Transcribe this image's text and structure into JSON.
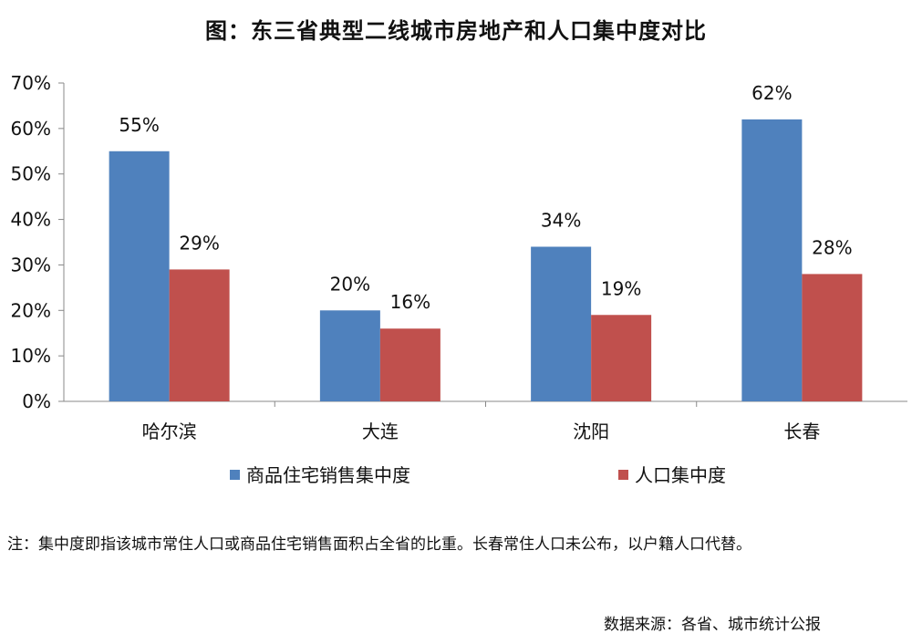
{
  "chart_data": {
    "type": "bar",
    "title": "图：东三省典型二线城市房地产和人口集中度对比",
    "categories": [
      "哈尔滨",
      "大连",
      "沈阳",
      "长春"
    ],
    "series": [
      {
        "name": "商品住宅销售集中度",
        "values": [
          55,
          20,
          34,
          62
        ],
        "labels": [
          "55%",
          "20%",
          "34%",
          "62%"
        ],
        "color": "#4f81bd"
      },
      {
        "name": "人口集中度",
        "values": [
          29,
          16,
          19,
          28
        ],
        "labels": [
          "29%",
          "16%",
          "19%",
          "28%"
        ],
        "color": "#c0504d"
      }
    ],
    "yticks": [
      "0%",
      "10%",
      "20%",
      "30%",
      "40%",
      "50%",
      "60%",
      "70%"
    ],
    "ylim": [
      0,
      70
    ],
    "legend": "bottom",
    "grid": false
  },
  "note": "注：集中度即指该城市常住人口或商品住宅销售面积占全省的比重。长春常住人口未公布，以户籍人口代替。",
  "source": "数据来源：各省、城市统计公报"
}
